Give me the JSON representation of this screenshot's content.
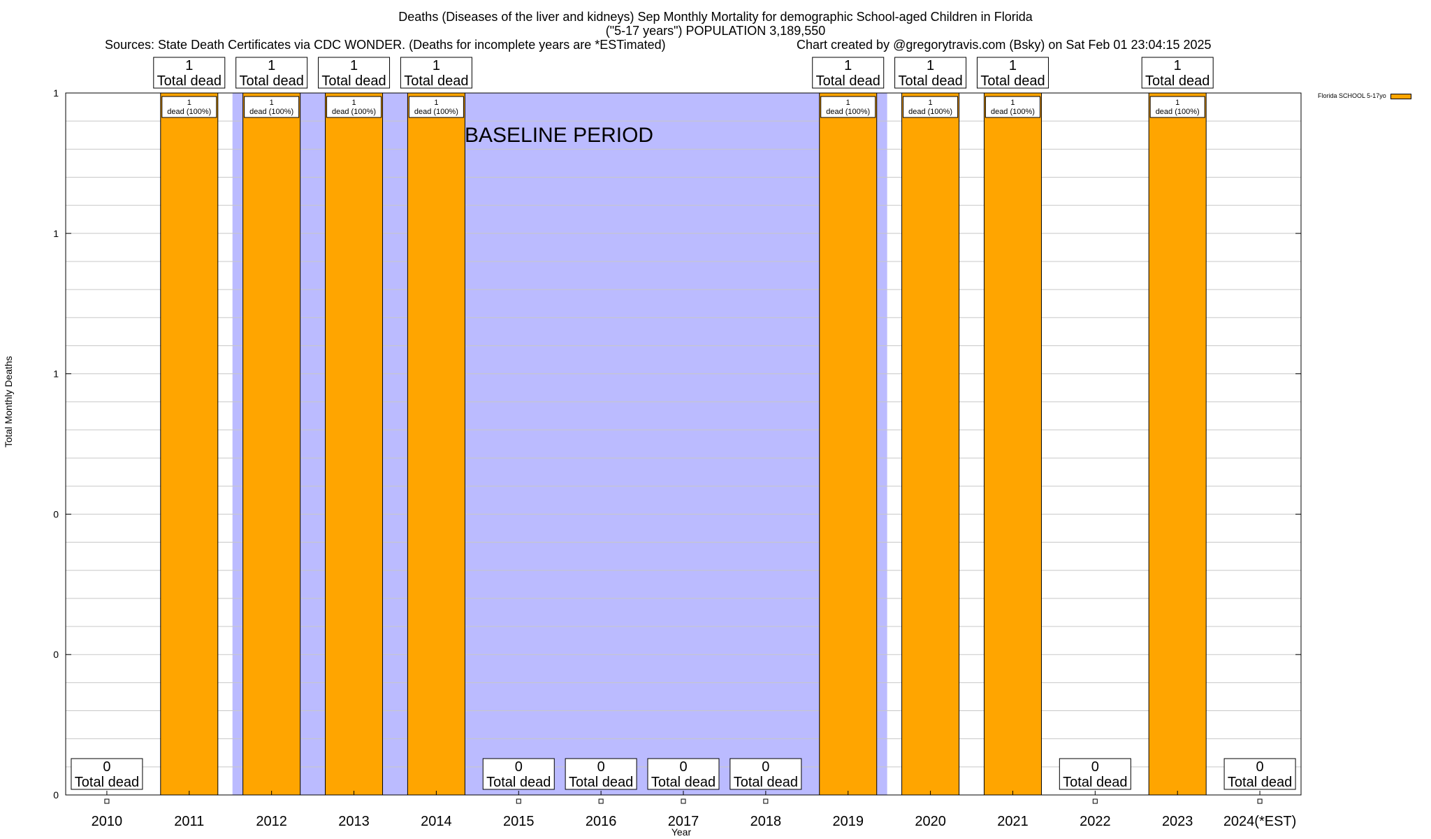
{
  "chart_data": {
    "type": "bar",
    "title_line1": "Deaths (Diseases of the liver and kidneys) Sep Monthly Mortality for demographic School-aged Children in Florida",
    "title_line2": "(\"5-17 years\") POPULATION 3,189,550",
    "source_left": "Sources: State Death Certificates via CDC WONDER. (Deaths for incomplete years are *ESTimated)",
    "source_right": "Chart created by @gregorytravis.com (Bsky) on Sat Feb 01 23:04:15 2025",
    "xlabel": "Year",
    "ylabel": "Total Monthly Deaths",
    "ylim": [
      0,
      1
    ],
    "ytick_labels": [
      "0",
      "0",
      "0",
      "1",
      "1",
      "1"
    ],
    "categories": [
      "2010",
      "2011",
      "2012",
      "2013",
      "2014",
      "2015",
      "2016",
      "2017",
      "2018",
      "2019",
      "2020",
      "2021",
      "2022",
      "2023",
      "2024(*EST)"
    ],
    "series": [
      {
        "name": "Florida SCHOOL 5-17yo",
        "color": "#ffa500",
        "values": [
          0,
          1,
          1,
          1,
          1,
          0,
          0,
          0,
          0,
          1,
          1,
          1,
          0,
          1,
          0
        ]
      }
    ],
    "total_label_numbers": [
      "0",
      "1",
      "1",
      "1",
      "1",
      "0",
      "0",
      "0",
      "0",
      "1",
      "1",
      "1",
      "0",
      "1",
      "0"
    ],
    "total_label_word": "Total dead",
    "inner_label_number": "1",
    "inner_label_text": "dead (100%)",
    "baseline_label": "BASELINE PERIOD",
    "baseline_color": "#bbbbff",
    "baseline_range": [
      "2012",
      "2019"
    ],
    "grid": true,
    "legend_position": "top-right"
  }
}
